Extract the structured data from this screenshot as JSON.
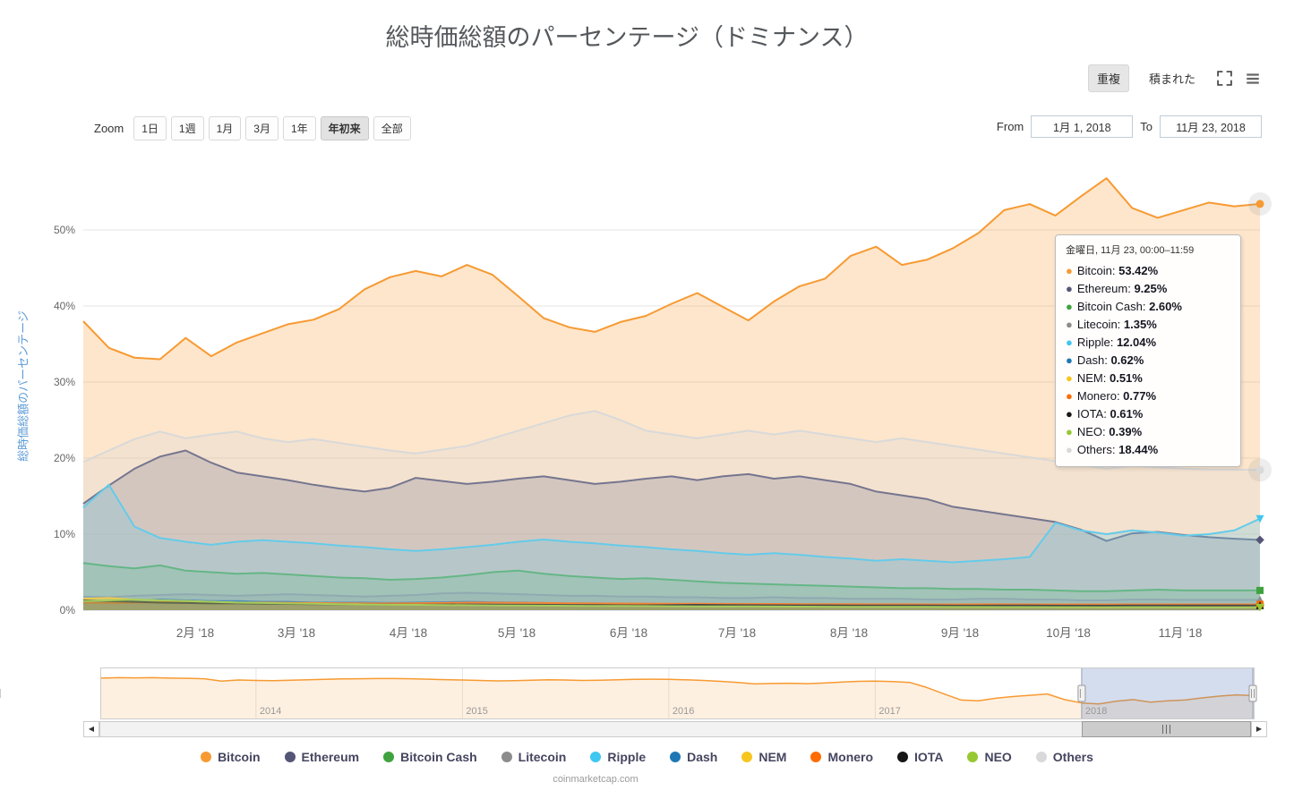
{
  "title": "総時価総額のパーセンテージ（ドミナンス）",
  "view_toggle": {
    "overlap": "重複",
    "stacked": "積まれた",
    "selected": "重複"
  },
  "zoom": {
    "label": "Zoom",
    "buttons": [
      "1日",
      "1週",
      "1月",
      "3月",
      "1年",
      "年初来",
      "全部"
    ],
    "selected": "年初来"
  },
  "range": {
    "from_label": "From",
    "from_value": "1月 1, 2018",
    "to_label": "To",
    "to_value": "11月 23, 2018"
  },
  "y_axis_title": "総時価総額のパーセンテージ",
  "tooltip": {
    "header": "金曜日, 11月 23, 00:00–11:59",
    "rows": [
      {
        "name": "Bitcoin",
        "value": "53.42%"
      },
      {
        "name": "Ethereum",
        "value": "9.25%"
      },
      {
        "name": "Bitcoin Cash",
        "value": "2.60%"
      },
      {
        "name": "Litecoin",
        "value": "1.35%"
      },
      {
        "name": "Ripple",
        "value": "12.04%"
      },
      {
        "name": "Dash",
        "value": "0.62%"
      },
      {
        "name": "NEM",
        "value": "0.51%"
      },
      {
        "name": "Monero",
        "value": "0.77%"
      },
      {
        "name": "IOTA",
        "value": "0.61%"
      },
      {
        "name": "NEO",
        "value": "0.39%"
      },
      {
        "name": "Others",
        "value": "18.44%"
      }
    ]
  },
  "watermark": "coinmarketcap.com",
  "chart_data": {
    "type": "area",
    "mode": "overlapping",
    "title": "総時価総額のパーセンテージ（ドミナンス）",
    "ylabel": "総時価総額のパーセンテージ",
    "ylim": [
      0,
      59
    ],
    "x_range": {
      "start": "2018-01-01",
      "end": "2018-11-23",
      "sampling": "weekly",
      "total_days": 326
    },
    "y_ticks": [
      {
        "v": 0,
        "label": "0%"
      },
      {
        "v": 10,
        "label": "10%"
      },
      {
        "v": 20,
        "label": "20%"
      },
      {
        "v": 30,
        "label": "30%"
      },
      {
        "v": 40,
        "label": "40%"
      },
      {
        "v": 50,
        "label": "50%"
      }
    ],
    "x_ticks": [
      {
        "label": "2月 '18",
        "day": 31
      },
      {
        "label": "3月 '18",
        "day": 59
      },
      {
        "label": "4月 '18",
        "day": 90
      },
      {
        "label": "5月 '18",
        "day": 120
      },
      {
        "label": "6月 '18",
        "day": 151
      },
      {
        "label": "7月 '18",
        "day": 181
      },
      {
        "label": "8月 '18",
        "day": 212
      },
      {
        "label": "9月 '18",
        "day": 243
      },
      {
        "label": "10月 '18",
        "day": 273
      },
      {
        "label": "11月 '18",
        "day": 304
      }
    ],
    "series": [
      {
        "name": "Bitcoin",
        "color": "#F79A32",
        "values": [
          38.0,
          34.5,
          33.2,
          33.0,
          35.8,
          33.4,
          35.2,
          36.4,
          37.6,
          38.2,
          39.6,
          42.2,
          43.8,
          44.6,
          43.9,
          45.4,
          44.1,
          41.3,
          38.4,
          37.2,
          36.6,
          37.9,
          38.7,
          40.3,
          41.7,
          39.9,
          38.1,
          40.6,
          42.6,
          43.6,
          46.6,
          47.8,
          45.4,
          46.1,
          47.6,
          49.6,
          52.6,
          53.4,
          51.9,
          54.4,
          56.8,
          52.9,
          51.6,
          52.6,
          53.6,
          53.1,
          53.42
        ]
      },
      {
        "name": "Ethereum",
        "color": "#555577",
        "values": [
          14.0,
          16.4,
          18.6,
          20.2,
          21.0,
          19.4,
          18.1,
          17.6,
          17.1,
          16.5,
          16.0,
          15.6,
          16.1,
          17.4,
          17.0,
          16.6,
          16.9,
          17.3,
          17.6,
          17.1,
          16.6,
          16.9,
          17.3,
          17.6,
          17.1,
          17.6,
          17.9,
          17.3,
          17.6,
          17.1,
          16.6,
          15.6,
          15.1,
          14.6,
          13.6,
          13.1,
          12.6,
          12.1,
          11.6,
          10.6,
          9.1,
          10.1,
          10.3,
          9.9,
          9.6,
          9.4,
          9.25
        ]
      },
      {
        "name": "Bitcoin Cash",
        "color": "#3FA23F",
        "values": [
          6.2,
          5.8,
          5.5,
          5.9,
          5.2,
          5.0,
          4.8,
          4.9,
          4.7,
          4.5,
          4.3,
          4.2,
          4.0,
          4.1,
          4.3,
          4.6,
          5.0,
          5.2,
          4.8,
          4.5,
          4.3,
          4.1,
          4.2,
          4.0,
          3.8,
          3.6,
          3.5,
          3.4,
          3.3,
          3.2,
          3.1,
          3.0,
          2.9,
          2.9,
          2.8,
          2.8,
          2.7,
          2.7,
          2.6,
          2.5,
          2.5,
          2.6,
          2.7,
          2.6,
          2.6,
          2.6,
          2.6
        ]
      },
      {
        "name": "Litecoin",
        "color": "#8C8C8C",
        "values": [
          1.8,
          1.7,
          1.9,
          2.0,
          2.1,
          2.0,
          1.9,
          2.0,
          2.1,
          2.0,
          1.9,
          1.8,
          1.9,
          2.0,
          2.2,
          2.3,
          2.2,
          2.1,
          2.0,
          1.9,
          1.9,
          1.8,
          1.8,
          1.7,
          1.7,
          1.6,
          1.6,
          1.7,
          1.6,
          1.6,
          1.5,
          1.5,
          1.5,
          1.4,
          1.4,
          1.5,
          1.5,
          1.4,
          1.4,
          1.3,
          1.3,
          1.4,
          1.4,
          1.35,
          1.35,
          1.35,
          1.35
        ]
      },
      {
        "name": "Ripple",
        "color": "#3EC7F0",
        "values": [
          13.5,
          16.5,
          11.0,
          9.5,
          9.0,
          8.6,
          9.0,
          9.2,
          9.0,
          8.8,
          8.5,
          8.3,
          8.0,
          7.8,
          8.0,
          8.3,
          8.6,
          9.0,
          9.3,
          9.0,
          8.8,
          8.5,
          8.3,
          8.0,
          7.8,
          7.5,
          7.3,
          7.5,
          7.3,
          7.0,
          6.8,
          6.5,
          6.7,
          6.5,
          6.3,
          6.5,
          6.7,
          7.0,
          11.5,
          10.5,
          10.0,
          10.5,
          10.2,
          9.8,
          10.0,
          10.5,
          12.04
        ]
      },
      {
        "name": "Dash",
        "color": "#1E77B4",
        "values": [
          1.3,
          1.2,
          1.3,
          1.4,
          1.3,
          1.2,
          1.2,
          1.1,
          1.1,
          1.0,
          1.0,
          1.0,
          0.95,
          1.0,
          1.05,
          1.1,
          1.05,
          1.0,
          0.95,
          0.9,
          0.9,
          0.85,
          0.85,
          0.8,
          0.8,
          0.78,
          0.75,
          0.75,
          0.72,
          0.7,
          0.7,
          0.68,
          0.67,
          0.66,
          0.65,
          0.65,
          0.64,
          0.63,
          0.62,
          0.6,
          0.6,
          0.62,
          0.63,
          0.62,
          0.62,
          0.62,
          0.62
        ]
      },
      {
        "name": "NEM",
        "color": "#F7C61E",
        "values": [
          1.5,
          1.6,
          1.4,
          1.3,
          1.2,
          1.1,
          1.0,
          0.95,
          0.9,
          0.85,
          0.8,
          0.78,
          0.75,
          0.72,
          0.7,
          0.68,
          0.66,
          0.65,
          0.63,
          0.62,
          0.6,
          0.6,
          0.58,
          0.57,
          0.56,
          0.55,
          0.55,
          0.54,
          0.54,
          0.53,
          0.53,
          0.52,
          0.52,
          0.52,
          0.51,
          0.51,
          0.51,
          0.5,
          0.5,
          0.5,
          0.5,
          0.51,
          0.51,
          0.51,
          0.51,
          0.51,
          0.51
        ]
      },
      {
        "name": "Monero",
        "color": "#FF6B01",
        "values": [
          1.0,
          0.95,
          1.0,
          1.05,
          1.1,
          1.05,
          1.0,
          1.0,
          0.98,
          0.95,
          0.92,
          0.9,
          0.9,
          0.92,
          0.95,
          1.0,
          1.0,
          0.98,
          0.95,
          0.92,
          0.9,
          0.88,
          0.87,
          0.85,
          0.85,
          0.83,
          0.82,
          0.82,
          0.8,
          0.8,
          0.8,
          0.78,
          0.78,
          0.77,
          0.77,
          0.78,
          0.78,
          0.77,
          0.77,
          0.76,
          0.76,
          0.77,
          0.77,
          0.77,
          0.77,
          0.77,
          0.77
        ]
      },
      {
        "name": "IOTA",
        "color": "#161616",
        "values": [
          1.3,
          1.2,
          1.1,
          1.0,
          0.95,
          0.9,
          0.9,
          0.85,
          0.82,
          0.8,
          0.78,
          0.75,
          0.73,
          0.72,
          0.73,
          0.75,
          0.73,
          0.72,
          0.7,
          0.68,
          0.67,
          0.65,
          0.65,
          0.68,
          0.7,
          0.68,
          0.66,
          0.65,
          0.64,
          0.63,
          0.62,
          0.62,
          0.61,
          0.61,
          0.6,
          0.6,
          0.61,
          0.61,
          0.6,
          0.6,
          0.6,
          0.61,
          0.61,
          0.61,
          0.61,
          0.61,
          0.61
        ]
      },
      {
        "name": "NEO",
        "color": "#96C832",
        "values": [
          1.2,
          1.3,
          1.4,
          1.3,
          1.2,
          1.1,
          1.0,
          0.95,
          0.9,
          0.85,
          0.8,
          0.75,
          0.72,
          0.7,
          0.68,
          0.66,
          0.64,
          0.62,
          0.6,
          0.58,
          0.56,
          0.55,
          0.54,
          0.52,
          0.51,
          0.5,
          0.49,
          0.48,
          0.47,
          0.46,
          0.45,
          0.44,
          0.43,
          0.43,
          0.42,
          0.42,
          0.41,
          0.41,
          0.4,
          0.4,
          0.39,
          0.4,
          0.4,
          0.39,
          0.39,
          0.39,
          0.39
        ]
      },
      {
        "name": "Others",
        "color": "#D9D9D9",
        "values": [
          19.5,
          21.0,
          22.5,
          23.5,
          22.6,
          23.1,
          23.5,
          22.6,
          22.1,
          22.5,
          22.0,
          21.5,
          21.0,
          20.6,
          21.1,
          21.6,
          22.6,
          23.6,
          24.6,
          25.6,
          26.2,
          25.0,
          23.6,
          23.1,
          22.6,
          23.1,
          23.6,
          23.1,
          23.6,
          23.1,
          22.6,
          22.1,
          22.6,
          22.1,
          21.6,
          21.1,
          20.6,
          20.1,
          19.6,
          19.1,
          18.6,
          19.0,
          18.8,
          18.6,
          18.5,
          18.5,
          18.44
        ]
      }
    ],
    "navigator": {
      "series_name": "Bitcoin",
      "sampling": "monthly 2013-04 to 2018-11",
      "values": [
        94,
        95,
        94.5,
        95,
        94,
        93.5,
        92.5,
        87,
        89.5,
        88.5,
        88,
        89,
        90,
        91,
        92,
        92.5,
        93,
        93,
        92.5,
        91.5,
        90.5,
        89.5,
        88.5,
        87.5,
        88,
        89,
        90,
        89.5,
        88.5,
        89,
        90,
        91,
        91.5,
        91,
        90,
        88.5,
        86.5,
        84,
        80.5,
        81.5,
        82,
        81,
        82.5,
        84.5,
        86.5,
        87,
        86,
        84,
        72,
        57,
        43,
        41,
        47,
        51,
        54,
        57,
        44,
        36,
        34,
        40,
        44,
        38,
        41,
        43,
        48,
        52,
        55,
        53.4
      ],
      "x_ticks": [
        {
          "label": "2014",
          "i": 9
        },
        {
          "label": "2015",
          "i": 21
        },
        {
          "label": "2016",
          "i": 33
        },
        {
          "label": "2017",
          "i": 45
        },
        {
          "label": "2018",
          "i": 57
        }
      ],
      "selected_start_index": 57,
      "selected_range": {
        "from": "2018-01-01",
        "to": "2018-11-23"
      }
    }
  }
}
